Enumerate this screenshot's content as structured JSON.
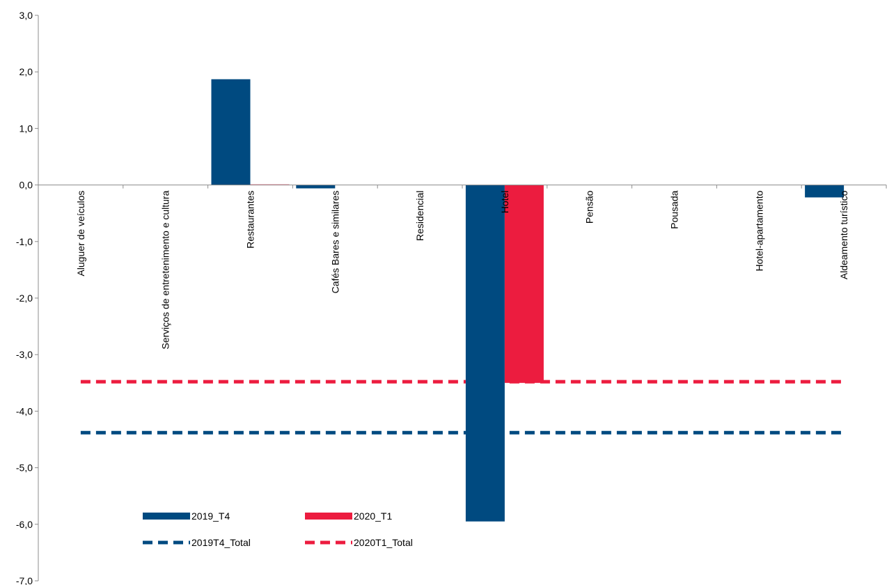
{
  "chart_data": {
    "type": "bar",
    "ylim": [
      -7,
      3
    ],
    "y_ticks": [
      "3,0",
      "2,0",
      "1,0",
      "0,0",
      "-1,0",
      "-2,0",
      "-3,0",
      "-4,0",
      "-5,0",
      "-6,0",
      "-7,0"
    ],
    "y_tick_values": [
      3,
      2,
      1,
      0,
      -1,
      -2,
      -3,
      -4,
      -5,
      -6,
      -7
    ],
    "categories": [
      "Aluguer de veículos",
      "Serviços de entretenimento e cultura",
      "Restaurantes",
      "Cafés Bares e similares",
      "Residencial",
      "Hotel",
      "Pensão",
      "Pousada",
      "Hotel-apartamento",
      "Aldeamento turístico"
    ],
    "series": [
      {
        "name": "2019_T4",
        "color": "#004a80",
        "values": [
          0,
          0,
          1.87,
          -0.06,
          0,
          -5.95,
          0,
          0,
          0,
          -0.22
        ]
      },
      {
        "name": "2020_T1",
        "color": "#ec1c3f",
        "values": [
          0,
          0,
          0.01,
          0,
          0,
          -3.5,
          0,
          0,
          0,
          0
        ]
      }
    ],
    "reference_lines": [
      {
        "name": "2019T4_Total",
        "color": "#004a80",
        "value": -4.38,
        "style": "dashed"
      },
      {
        "name": "2020T1_Total",
        "color": "#ec1c3f",
        "value": -3.48,
        "style": "dashed"
      }
    ],
    "grid": false,
    "legend_position": "bottom-left"
  }
}
